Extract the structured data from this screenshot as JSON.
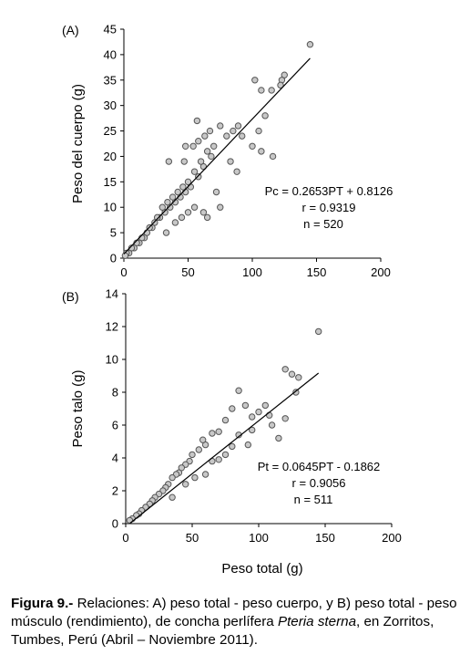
{
  "chart_data": [
    {
      "type": "scatter",
      "panel_label": "(A)",
      "title": "",
      "xlabel": "",
      "ylabel": "Peso del cuerpo (g)",
      "xlim": [
        0,
        200
      ],
      "ylim": [
        0,
        45
      ],
      "xticks": [
        "0",
        "50",
        "100",
        "150",
        "200"
      ],
      "yticks": [
        "0",
        "5",
        "10",
        "15",
        "20",
        "25",
        "30",
        "35",
        "40",
        "45"
      ],
      "grid": false,
      "legend": "none",
      "marker_color": "#c8c8c8",
      "marker_edge_color": "#555555",
      "points_visible_n": 520,
      "sample_points_shown": [
        [
          145,
          42
        ],
        [
          125,
          36
        ],
        [
          123,
          35
        ],
        [
          122,
          34
        ],
        [
          102,
          35
        ],
        [
          107,
          33
        ],
        [
          115,
          33
        ],
        [
          110,
          28
        ],
        [
          105,
          25
        ],
        [
          100,
          22
        ],
        [
          107,
          21
        ],
        [
          116,
          20
        ],
        [
          89,
          26
        ],
        [
          92,
          24
        ],
        [
          85,
          25
        ],
        [
          80,
          24
        ],
        [
          75,
          26
        ],
        [
          83,
          19
        ],
        [
          88,
          17
        ],
        [
          70,
          22
        ],
        [
          68,
          20
        ],
        [
          65,
          21
        ],
        [
          62,
          18
        ],
        [
          60,
          19
        ],
        [
          58,
          16
        ],
        [
          55,
          17
        ],
        [
          52,
          14
        ],
        [
          50,
          15
        ],
        [
          48,
          13
        ],
        [
          46,
          14
        ],
        [
          44,
          12
        ],
        [
          42,
          13
        ],
        [
          40,
          11
        ],
        [
          38,
          12
        ],
        [
          36,
          10
        ],
        [
          34,
          11
        ],
        [
          32,
          9
        ],
        [
          30,
          10
        ],
        [
          28,
          8
        ],
        [
          26,
          8
        ],
        [
          24,
          7
        ],
        [
          22,
          6
        ],
        [
          20,
          6
        ],
        [
          18,
          5
        ],
        [
          16,
          4
        ],
        [
          14,
          4
        ],
        [
          12,
          3
        ],
        [
          10,
          3
        ],
        [
          8,
          2
        ],
        [
          6,
          2
        ],
        [
          4,
          1
        ],
        [
          2,
          1
        ],
        [
          1,
          0.5
        ],
        [
          35,
          19
        ],
        [
          65,
          8
        ],
        [
          75,
          10
        ],
        [
          72,
          13
        ],
        [
          62,
          9
        ],
        [
          55,
          10
        ],
        [
          50,
          9
        ],
        [
          45,
          8
        ],
        [
          40,
          7
        ],
        [
          33,
          5
        ],
        [
          54,
          22
        ],
        [
          58,
          23
        ],
        [
          63,
          24
        ],
        [
          67,
          25
        ],
        [
          57,
          27
        ],
        [
          47,
          19
        ],
        [
          48,
          22
        ]
      ],
      "regression": {
        "slope": 0.2653,
        "intercept": 0.8126,
        "x_range": [
          0,
          145
        ]
      },
      "annotation": {
        "equation": "Pc = 0.2653PT +  0.8126",
        "r": "r = 0.9319",
        "n": "n = 520"
      }
    },
    {
      "type": "scatter",
      "panel_label": "(B)",
      "title": "",
      "xlabel": "Peso total (g)",
      "ylabel": "Peso talo (g)",
      "xlim": [
        0,
        200
      ],
      "ylim": [
        0,
        14
      ],
      "xticks": [
        "0",
        "50",
        "100",
        "150",
        "200"
      ],
      "yticks": [
        "0",
        "2",
        "4",
        "6",
        "8",
        "10",
        "12",
        "14"
      ],
      "grid": false,
      "legend": "none",
      "marker_color": "#c8c8c8",
      "marker_edge_color": "#555555",
      "points_visible_n": 511,
      "sample_points_shown": [
        [
          145,
          11.7
        ],
        [
          120,
          9.4
        ],
        [
          125,
          9.1
        ],
        [
          130,
          8.9
        ],
        [
          128,
          8.0
        ],
        [
          105,
          7.2
        ],
        [
          108,
          6.6
        ],
        [
          110,
          6.0
        ],
        [
          120,
          6.4
        ],
        [
          115,
          5.2
        ],
        [
          100,
          6.8
        ],
        [
          95,
          6.5
        ],
        [
          90,
          7.2
        ],
        [
          85,
          8.1
        ],
        [
          80,
          7.0
        ],
        [
          75,
          6.3
        ],
        [
          70,
          5.6
        ],
        [
          65,
          5.5
        ],
        [
          60,
          4.8
        ],
        [
          58,
          5.1
        ],
        [
          55,
          4.5
        ],
        [
          50,
          4.2
        ],
        [
          48,
          3.8
        ],
        [
          45,
          3.6
        ],
        [
          42,
          3.4
        ],
        [
          40,
          3.1
        ],
        [
          38,
          3.0
        ],
        [
          35,
          2.8
        ],
        [
          32,
          2.4
        ],
        [
          30,
          2.2
        ],
        [
          28,
          2.0
        ],
        [
          25,
          1.8
        ],
        [
          22,
          1.6
        ],
        [
          20,
          1.4
        ],
        [
          18,
          1.2
        ],
        [
          15,
          1.0
        ],
        [
          12,
          0.8
        ],
        [
          10,
          0.6
        ],
        [
          8,
          0.5
        ],
        [
          5,
          0.3
        ],
        [
          3,
          0.2
        ],
        [
          52,
          2.8
        ],
        [
          60,
          3.0
        ],
        [
          70,
          3.9
        ],
        [
          80,
          4.7
        ],
        [
          92,
          4.8
        ],
        [
          35,
          1.6
        ],
        [
          45,
          2.4
        ],
        [
          65,
          3.8
        ],
        [
          75,
          4.2
        ],
        [
          85,
          5.4
        ],
        [
          95,
          5.7
        ]
      ],
      "regression": {
        "slope": 0.0645,
        "intercept": -0.1862,
        "x_range": [
          3,
          145
        ]
      },
      "annotation": {
        "equation": "Pt = 0.0645PT  - 0.1862",
        "r": "r = 0.9056",
        "n": "n = 511"
      }
    }
  ],
  "caption": {
    "bold": "Figura 9.-",
    "text_before_italic": " Relaciones: A) peso total - peso cuerpo, y B) peso total - peso músculo (rendimiento), de concha perlífera ",
    "italic": "Pteria sterna",
    "text_after_italic": ", en Zorritos, Tumbes, Perú (Abril – Noviembre 2011)."
  }
}
